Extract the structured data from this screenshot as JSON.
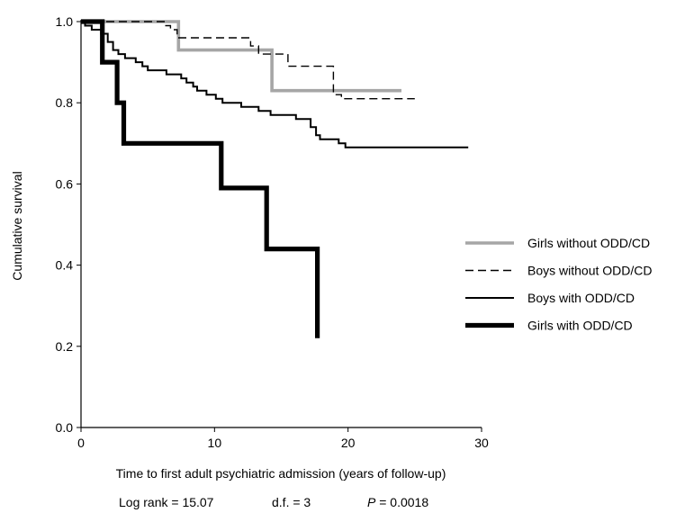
{
  "chart_data": {
    "type": "line",
    "subtype": "kaplan-meier step curves",
    "xlabel": "Time to first adult psychiatric admission (years of follow-up)",
    "ylabel": "Cumulative survival",
    "xlim": [
      0,
      30
    ],
    "ylim": [
      0.0,
      1.0
    ],
    "x_ticks": [
      0,
      10,
      20,
      30
    ],
    "x_tick_labels": [
      "0",
      "10",
      "20",
      "30"
    ],
    "y_ticks": [
      0.0,
      0.2,
      0.4,
      0.6,
      0.8,
      1.0
    ],
    "y_tick_labels": [
      "0.0",
      "0.2",
      "0.4",
      "0.6",
      "0.8",
      "1.0"
    ],
    "grid": false,
    "legend_position": "right",
    "stats": {
      "log_rank": "Log rank = 15.07",
      "df": "d.f. = 3",
      "p_label": "P",
      "p_value": " = 0.0018"
    },
    "series": [
      {
        "name": "Girls without ODD/CD",
        "color": "#a6a6a6",
        "style": "solid",
        "weight": "medium",
        "points": [
          [
            0,
            1.0
          ],
          [
            7.3,
            1.0
          ],
          [
            7.3,
            0.93
          ],
          [
            14.3,
            0.93
          ],
          [
            14.3,
            0.83
          ],
          [
            24.0,
            0.83
          ]
        ]
      },
      {
        "name": "Boys without ODD/CD",
        "color": "#000000",
        "style": "dashed",
        "weight": "thin",
        "points": [
          [
            0,
            1.0
          ],
          [
            6.3,
            1.0
          ],
          [
            6.3,
            0.99
          ],
          [
            6.7,
            0.99
          ],
          [
            6.7,
            0.98
          ],
          [
            7.2,
            0.98
          ],
          [
            7.2,
            0.96
          ],
          [
            12.7,
            0.96
          ],
          [
            12.7,
            0.94
          ],
          [
            13.3,
            0.94
          ],
          [
            13.3,
            0.92
          ],
          [
            15.5,
            0.92
          ],
          [
            15.5,
            0.89
          ],
          [
            18.9,
            0.89
          ],
          [
            18.9,
            0.82
          ],
          [
            19.5,
            0.82
          ],
          [
            19.5,
            0.81
          ],
          [
            25.0,
            0.81
          ]
        ]
      },
      {
        "name": "Boys with ODD/CD",
        "color": "#000000",
        "style": "solid",
        "weight": "normal",
        "points": [
          [
            0,
            1.0
          ],
          [
            0.3,
            1.0
          ],
          [
            0.3,
            0.99
          ],
          [
            0.8,
            0.99
          ],
          [
            0.8,
            0.98
          ],
          [
            1.5,
            0.98
          ],
          [
            1.5,
            0.97
          ],
          [
            2.0,
            0.97
          ],
          [
            2.0,
            0.95
          ],
          [
            2.4,
            0.95
          ],
          [
            2.4,
            0.93
          ],
          [
            2.8,
            0.93
          ],
          [
            2.8,
            0.92
          ],
          [
            3.3,
            0.92
          ],
          [
            3.3,
            0.91
          ],
          [
            4.1,
            0.91
          ],
          [
            4.1,
            0.9
          ],
          [
            4.6,
            0.9
          ],
          [
            4.6,
            0.89
          ],
          [
            5.0,
            0.89
          ],
          [
            5.0,
            0.88
          ],
          [
            6.4,
            0.88
          ],
          [
            6.4,
            0.87
          ],
          [
            7.5,
            0.87
          ],
          [
            7.5,
            0.86
          ],
          [
            7.9,
            0.86
          ],
          [
            7.9,
            0.85
          ],
          [
            8.4,
            0.85
          ],
          [
            8.4,
            0.84
          ],
          [
            8.7,
            0.84
          ],
          [
            8.7,
            0.83
          ],
          [
            9.4,
            0.83
          ],
          [
            9.4,
            0.82
          ],
          [
            10.1,
            0.82
          ],
          [
            10.1,
            0.81
          ],
          [
            10.6,
            0.81
          ],
          [
            10.6,
            0.8
          ],
          [
            12.0,
            0.8
          ],
          [
            12.0,
            0.79
          ],
          [
            13.3,
            0.79
          ],
          [
            13.3,
            0.78
          ],
          [
            14.2,
            0.78
          ],
          [
            14.2,
            0.77
          ],
          [
            16.1,
            0.77
          ],
          [
            16.1,
            0.76
          ],
          [
            17.2,
            0.76
          ],
          [
            17.2,
            0.74
          ],
          [
            17.6,
            0.74
          ],
          [
            17.6,
            0.72
          ],
          [
            17.9,
            0.72
          ],
          [
            17.9,
            0.71
          ],
          [
            19.3,
            0.71
          ],
          [
            19.3,
            0.7
          ],
          [
            19.8,
            0.7
          ],
          [
            19.8,
            0.69
          ],
          [
            29.0,
            0.69
          ]
        ]
      },
      {
        "name": "Girls with ODD/CD",
        "color": "#000000",
        "style": "solid",
        "weight": "bold",
        "points": [
          [
            0,
            1.0
          ],
          [
            1.6,
            1.0
          ],
          [
            1.6,
            0.9
          ],
          [
            2.7,
            0.9
          ],
          [
            2.7,
            0.8
          ],
          [
            3.2,
            0.8
          ],
          [
            3.2,
            0.7
          ],
          [
            10.5,
            0.7
          ],
          [
            10.5,
            0.59
          ],
          [
            13.9,
            0.59
          ],
          [
            13.9,
            0.44
          ],
          [
            17.7,
            0.44
          ],
          [
            17.7,
            0.22
          ]
        ]
      }
    ]
  }
}
